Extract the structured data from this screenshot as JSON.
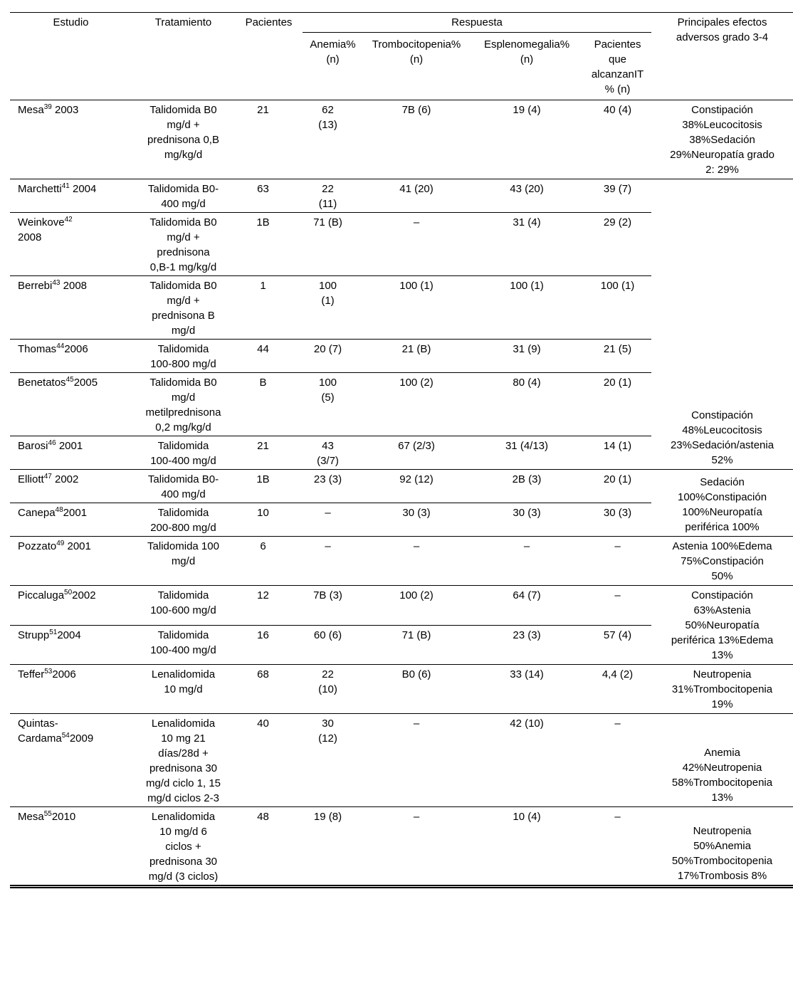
{
  "table": {
    "header": {
      "study": "Estudio",
      "treatment": "Tratamiento",
      "patients": "Pacientes",
      "response": "Respuesta",
      "anemia": "Anemia%\n(n)",
      "thrombocytopenia": "Trombocitopenia%\n(n)",
      "splenomegaly": "Esplenomegalia%\n(n)",
      "ti": "Pacientes\nque\nalcanzanIT\n% (n)",
      "effects": "Principales efectos\nadversos grado 3-4"
    },
    "rows": [
      {
        "study": {
          "name": "Mesa",
          "ref": "39",
          "year": " 2003"
        },
        "treatment": "Talidomida B0\nmg/d +\nprednisona 0,B\nmg/kg/d",
        "patients": "21",
        "anemia": "62\n(13)",
        "thrombocytopenia": "7B (6)",
        "splenomegaly": "19 (4)",
        "ti": "40 (4)",
        "effects": "Constipación\n38%Leucocitosis\n38%Sedación\n29%Neuropatía grado\n2: 29%"
      },
      {
        "study": {
          "name": "Marchetti",
          "ref": "41",
          "year": " 2004"
        },
        "treatment": "Talidomida B0-\n400 mg/d",
        "patients": "63",
        "anemia": "22\n(11)",
        "thrombocytopenia": "41 (20)",
        "splenomegaly": "43 (20)",
        "ti": "39 (7)",
        "effects": "Constipación\n48%Leucocitosis\n23%Sedación/astenia\n52%"
      },
      {
        "study": {
          "name": "Weinkove",
          "ref": "42",
          "year": "\n2008"
        },
        "treatment": "Talidomida B0\nmg/d +\nprednisona\n0,B-1 mg/kg/d",
        "patients": "1B",
        "anemia": "71 (B)",
        "thrombocytopenia": "–",
        "splenomegaly": "31 (4)",
        "ti": "29 (2)"
      },
      {
        "study": {
          "name": "Berrebi",
          "ref": "43",
          "year": " 2008"
        },
        "treatment": "Talidomida B0\nmg/d +\nprednisona B\nmg/d",
        "patients": "1",
        "anemia": "100\n(1)",
        "thrombocytopenia": "100 (1)",
        "splenomegaly": "100 (1)",
        "ti": "100 (1)"
      },
      {
        "study": {
          "name": "Thomas",
          "ref": "44",
          "year": "2006"
        },
        "treatment": "Talidomida\n100-800 mg/d",
        "patients": "44",
        "anemia": "20 (7)",
        "thrombocytopenia": "21 (B)",
        "splenomegaly": "31 (9)",
        "ti": "21 (5)"
      },
      {
        "study": {
          "name": "Benetatos",
          "ref": "45",
          "year": "2005"
        },
        "treatment": "Talidomida B0\nmg/d\nmetilprednisona\n0,2 mg/kg/d",
        "patients": "B",
        "anemia": "100\n(5)",
        "thrombocytopenia": "100 (2)",
        "splenomegaly": "80 (4)",
        "ti": "20 (1)"
      },
      {
        "study": {
          "name": "Barosi",
          "ref": "46",
          "year": " 2001"
        },
        "treatment": "Talidomida\n100-400 mg/d",
        "patients": "21",
        "anemia": "43\n(3/7)",
        "thrombocytopenia": "67 (2/3)",
        "splenomegaly": "31 (4/13)",
        "ti": "14 (1)"
      },
      {
        "study": {
          "name": "Elliott",
          "ref": "47",
          "year": " 2002"
        },
        "treatment": "Talidomida B0-\n400 mg/d",
        "patients": "1B",
        "anemia": "23 (3)",
        "thrombocytopenia": "92 (12)",
        "splenomegaly": "2B (3)",
        "ti": "20 (1)",
        "effects": "Sedación\n100%Constipación\n100%Neuropatía\nperiférica 100%"
      },
      {
        "study": {
          "name": "Canepa",
          "ref": "48",
          "year": "2001"
        },
        "treatment": "Talidomida\n200-800 mg/d",
        "patients": "10",
        "anemia": "–",
        "thrombocytopenia": "30 (3)",
        "splenomegaly": "30 (3)",
        "ti": "30 (3)"
      },
      {
        "study": {
          "name": "Pozzato",
          "ref": "49",
          "year": " 2001"
        },
        "treatment": "Talidomida 100\nmg/d",
        "patients": "6",
        "anemia": "–",
        "thrombocytopenia": "–",
        "splenomegaly": "–",
        "ti": "–",
        "effects": "Astenia 100%Edema\n75%Constipación\n50%"
      },
      {
        "study": {
          "name": "Piccaluga",
          "ref": "50",
          "year": "2002"
        },
        "treatment": "Talidomida\n100-600 mg/d",
        "patients": "12",
        "anemia": "7B (3)",
        "thrombocytopenia": "100 (2)",
        "splenomegaly": "64 (7)",
        "ti": "–",
        "effects": "Constipación\n63%Astenia\n50%Neuropatía\nperiférica 13%Edema\n13%"
      },
      {
        "study": {
          "name": "Strupp",
          "ref": "51",
          "year": "2004"
        },
        "treatment": "Talidomida\n100-400 mg/d",
        "patients": "16",
        "anemia": "60 (6)",
        "thrombocytopenia": "71 (B)",
        "splenomegaly": "23 (3)",
        "ti": "57 (4)"
      },
      {
        "study": {
          "name": "Teffer",
          "ref": "53",
          "year": "2006"
        },
        "treatment": "Lenalidomida\n10 mg/d",
        "patients": "68",
        "anemia": "22\n(10)",
        "thrombocytopenia": "B0 (6)",
        "splenomegaly": "33 (14)",
        "ti": "4,4 (2)",
        "effects": "Neutropenia\n31%Trombocitopenia\n19%"
      },
      {
        "study": {
          "name": "Quintas-\nCardama",
          "ref": "54",
          "year": "2009"
        },
        "treatment": "Lenalidomida\n10 mg 21\ndías/28d +\nprednisona 30\nmg/d ciclo 1, 15\nmg/d ciclos 2-3",
        "patients": "40",
        "anemia": "30\n(12)",
        "thrombocytopenia": "–",
        "splenomegaly": "42 (10)",
        "ti": "–",
        "effects": "Anemia\n42%Neutropenia\n58%Trombocitopenia\n13%"
      },
      {
        "study": {
          "name": "Mesa",
          "ref": "55",
          "year": "2010"
        },
        "treatment": "Lenalidomida\n10 mg/d 6\nciclos +\nprednisona 30\nmg/d (3 ciclos)",
        "patients": "48",
        "anemia": "19 (8)",
        "thrombocytopenia": "–",
        "splenomegaly": "10 (4)",
        "ti": "–",
        "effects": "Neutropenia\n50%Anemia\n50%Trombocitopenia\n17%Trombosis 8%"
      }
    ]
  }
}
